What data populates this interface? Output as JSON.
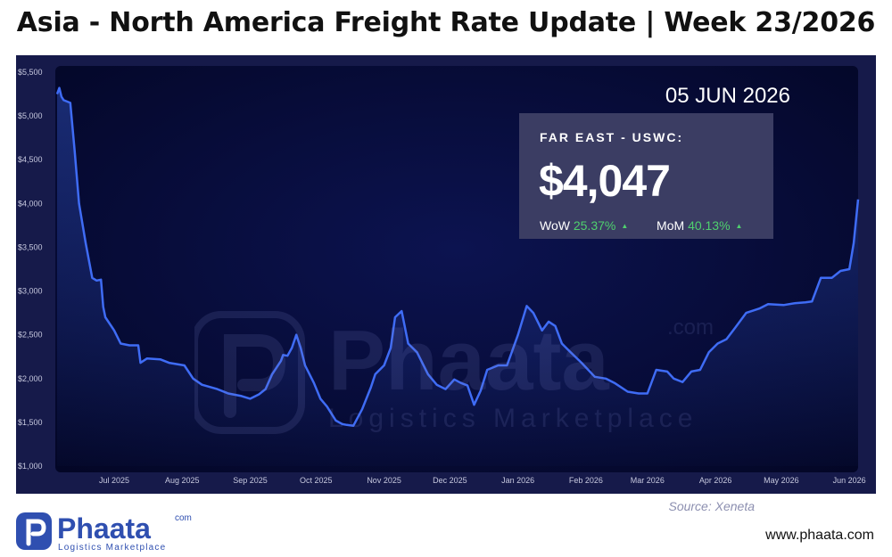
{
  "header": {
    "title": "Asia - North America Freight Rate Update | Week 23/2026"
  },
  "overlay": {
    "date": "05 JUN 2026",
    "route": "FAR EAST - USWC:",
    "rate": "$4,047",
    "wow_label": "WoW",
    "wow_value": "25.37%",
    "mom_label": "MoM",
    "mom_value": "40.13%",
    "source": "Source: Xeneta"
  },
  "watermark": {
    "brand": "Phaata",
    "tagline": "Logistics Marketplace",
    "tld": ".com"
  },
  "footer": {
    "brand": "Phaata",
    "tagline": "Logistics Marketplace",
    "tld": "com",
    "url": "www.phaata.com"
  },
  "colors": {
    "line": "#3f6cf5",
    "panel": "#161a4a",
    "positive": "#4fd06e"
  },
  "icons": {
    "wow_trend": "up-triangle-icon",
    "mom_trend": "up-triangle-icon"
  },
  "chart_data": {
    "type": "line",
    "title": "",
    "xlabel": "",
    "ylabel": "",
    "grid": false,
    "ylim": [
      1000,
      5500
    ],
    "xlim": [
      "2025-06-05",
      "2026-06-05"
    ],
    "y_ticks": [
      1000,
      1500,
      2000,
      2500,
      3000,
      3500,
      4000,
      4500,
      5000,
      5500
    ],
    "y_tick_labels": [
      "$1,000",
      "$1,500",
      "$2,000",
      "$2,500",
      "$3,000",
      "$3,500",
      "$4,000",
      "$4,500",
      "$5,000",
      "$5,500"
    ],
    "x_ticks": [
      "2025-07-01",
      "2025-08-01",
      "2025-09-01",
      "2025-10-01",
      "2025-11-01",
      "2025-12-01",
      "2026-01-01",
      "2026-02-01",
      "2026-03-01",
      "2026-04-01",
      "2026-05-01",
      "2026-06-01"
    ],
    "x_tick_labels": [
      "Jul 2025",
      "Aug 2025",
      "Sep 2025",
      "Oct 2025",
      "Nov 2025",
      "Dec 2025",
      "Jan 2026",
      "Feb 2026",
      "Mar 2026",
      "Apr 2026",
      "May 2026",
      "Jun 2026"
    ],
    "series": [
      {
        "name": "",
        "x": [
          "2025-06-05",
          "2025-06-06",
          "2025-06-07",
          "2025-06-08",
          "2025-06-11",
          "2025-06-13",
          "2025-06-15",
          "2025-06-18",
          "2025-06-21",
          "2025-06-23",
          "2025-06-25",
          "2025-06-26",
          "2025-06-27",
          "2025-07-01",
          "2025-07-04",
          "2025-07-08",
          "2025-07-12",
          "2025-07-13",
          "2025-07-16",
          "2025-07-22",
          "2025-07-26",
          "2025-08-02",
          "2025-08-06",
          "2025-08-10",
          "2025-08-17",
          "2025-08-22",
          "2025-08-28",
          "2025-09-01",
          "2025-09-05",
          "2025-09-08",
          "2025-09-11",
          "2025-09-15",
          "2025-09-16",
          "2025-09-18",
          "2025-09-20",
          "2025-09-22",
          "2025-09-24",
          "2025-09-26",
          "2025-09-30",
          "2025-10-03",
          "2025-10-06",
          "2025-10-10",
          "2025-10-13",
          "2025-10-15",
          "2025-10-18",
          "2025-10-22",
          "2025-10-26",
          "2025-10-28",
          "2025-11-01",
          "2025-11-04",
          "2025-11-06",
          "2025-11-09",
          "2025-11-12",
          "2025-11-16",
          "2025-11-21",
          "2025-11-25",
          "2025-11-29",
          "2025-12-03",
          "2025-12-06",
          "2025-12-09",
          "2025-12-12",
          "2025-12-15",
          "2025-12-18",
          "2025-12-23",
          "2025-12-27",
          "2026-01-01",
          "2026-01-05",
          "2026-01-08",
          "2026-01-12",
          "2026-01-15",
          "2026-01-18",
          "2026-01-21",
          "2026-01-25",
          "2026-01-30",
          "2026-02-05",
          "2026-02-10",
          "2026-02-14",
          "2026-02-20",
          "2026-02-25",
          "2026-03-01",
          "2026-03-05",
          "2026-03-10",
          "2026-03-13",
          "2026-03-17",
          "2026-03-21",
          "2026-03-25",
          "2026-03-29",
          "2026-04-02",
          "2026-04-06",
          "2026-04-10",
          "2026-04-15",
          "2026-04-21",
          "2026-04-25",
          "2026-05-02",
          "2026-05-07",
          "2026-05-12",
          "2026-05-15",
          "2026-05-19",
          "2026-05-24",
          "2026-05-28",
          "2026-06-01",
          "2026-06-03",
          "2026-06-05"
        ],
        "values": [
          5250,
          5320,
          5220,
          5180,
          5150,
          4600,
          4000,
          3550,
          3150,
          3120,
          3130,
          2820,
          2700,
          2550,
          2400,
          2380,
          2380,
          2180,
          2230,
          2220,
          2180,
          2150,
          2000,
          1930,
          1880,
          1830,
          1800,
          1770,
          1820,
          1880,
          2050,
          2200,
          2270,
          2260,
          2350,
          2500,
          2350,
          2150,
          1950,
          1770,
          1680,
          1520,
          1480,
          1470,
          1460,
          1650,
          1900,
          2050,
          2150,
          2350,
          2700,
          2770,
          2400,
          2300,
          2050,
          1930,
          1880,
          1990,
          1950,
          1920,
          1700,
          1860,
          2100,
          2150,
          2150,
          2500,
          2830,
          2750,
          2550,
          2650,
          2600,
          2400,
          2300,
          2180,
          2020,
          2000,
          1950,
          1850,
          1830,
          1830,
          2100,
          2080,
          2000,
          1960,
          2080,
          2100,
          2300,
          2400,
          2450,
          2580,
          2750,
          2800,
          2850,
          2840,
          2860,
          2870,
          2880,
          3150,
          3150,
          3230,
          3250,
          3550,
          4047
        ]
      }
    ]
  }
}
